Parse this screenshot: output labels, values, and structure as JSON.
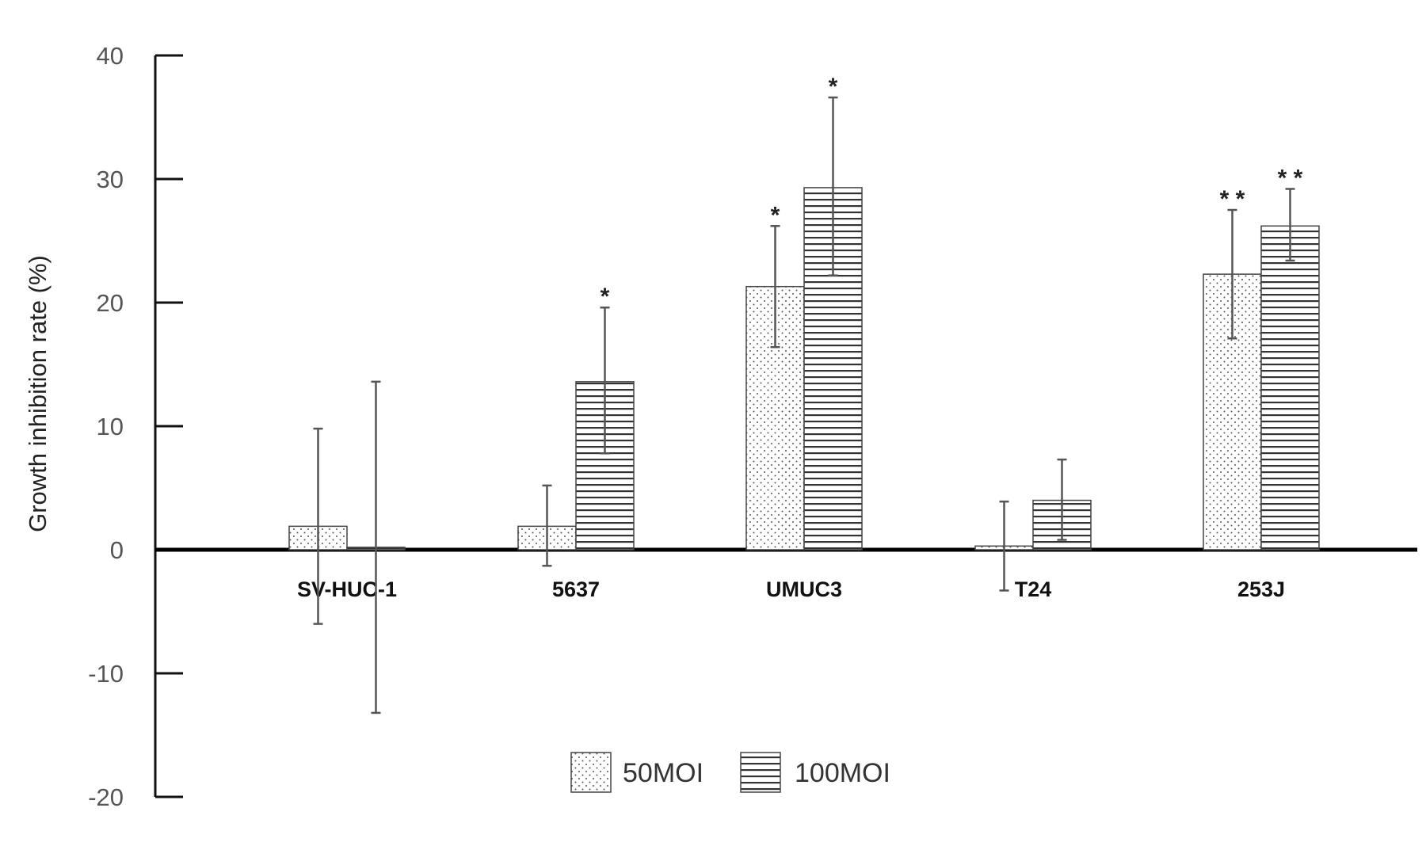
{
  "chart_data": {
    "type": "bar",
    "title": "",
    "xlabel": "",
    "ylabel": "Growth inhibition rate (%)",
    "ylim": [
      -20,
      40
    ],
    "yticks": [
      40,
      30,
      20,
      10,
      0,
      -10,
      -20
    ],
    "grid": false,
    "legend_position": "bottom-center",
    "categories": [
      "SV-HUC-1",
      "5637",
      "UMUC3",
      "T24",
      "253J"
    ],
    "series": [
      {
        "name": "50MOI",
        "pattern": "dots",
        "values": [
          1.9,
          1.9,
          21.3,
          0.3,
          22.3
        ],
        "error_upper": [
          9.8,
          5.2,
          26.2,
          3.9,
          27.5
        ],
        "error_lower": [
          -6.0,
          -1.3,
          16.4,
          -3.3,
          17.1
        ],
        "significance": [
          "",
          "",
          "*",
          "",
          "**"
        ]
      },
      {
        "name": "100MOI",
        "pattern": "horizontal-lines",
        "values": [
          0.2,
          13.6,
          29.3,
          4.0,
          26.2
        ],
        "error_upper": [
          13.6,
          19.6,
          36.6,
          7.3,
          29.2
        ],
        "error_lower": [
          -13.2,
          7.8,
          22.2,
          0.8,
          23.4
        ],
        "significance": [
          "",
          "*",
          "*",
          "",
          "**"
        ]
      }
    ]
  }
}
